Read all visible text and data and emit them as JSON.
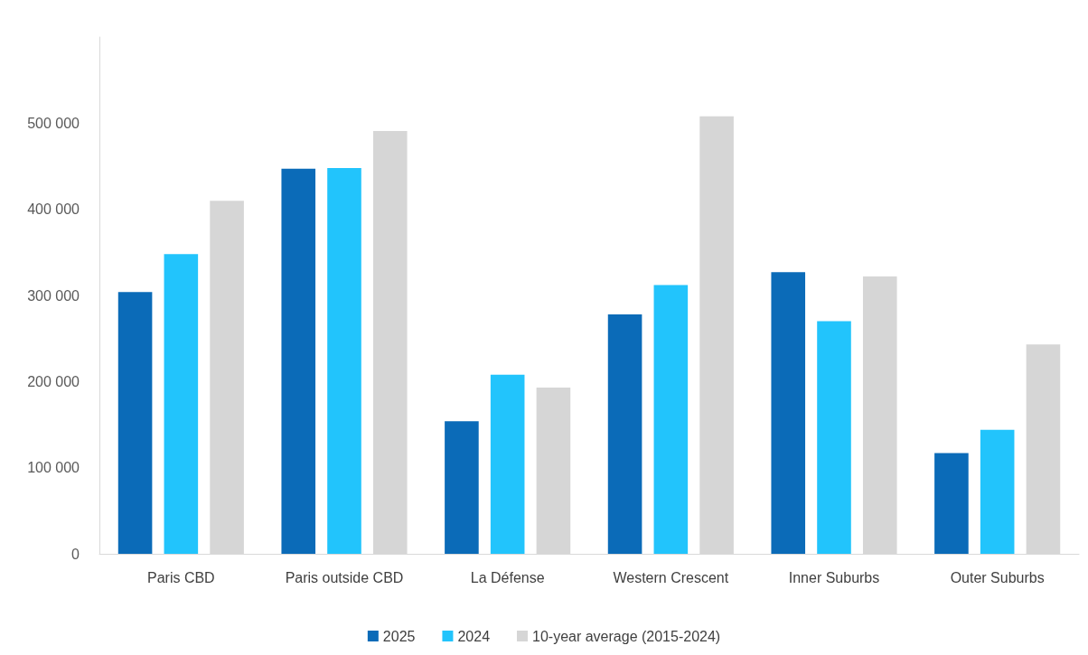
{
  "chart_data": {
    "type": "bar",
    "categories": [
      "Paris CBD",
      "Paris outside CBD",
      "La Défense",
      "Western Crescent",
      "Inner Suburbs",
      "Outer Suburbs"
    ],
    "series": [
      {
        "name": "2025",
        "color": "#0b6bb8",
        "values": [
          304000,
          447000,
          154000,
          278000,
          327000,
          117000
        ]
      },
      {
        "name": "2024",
        "color": "#22c4fc",
        "values": [
          348000,
          448000,
          208000,
          312000,
          270000,
          144000
        ]
      },
      {
        "name": "10-year average (2015-2024)",
        "color": "#d6d6d6",
        "values": [
          410000,
          491000,
          193000,
          508000,
          322000,
          243000
        ]
      }
    ],
    "ylim": [
      0,
      600000
    ],
    "yticks": [
      {
        "value": 0,
        "label": "0"
      },
      {
        "value": 100000,
        "label": "100 000"
      },
      {
        "value": 200000,
        "label": "200 000"
      },
      {
        "value": 300000,
        "label": "300 000"
      },
      {
        "value": 400000,
        "label": "400 000"
      },
      {
        "value": 500000,
        "label": "500 000"
      }
    ],
    "grid": false,
    "legend": "bottom"
  }
}
